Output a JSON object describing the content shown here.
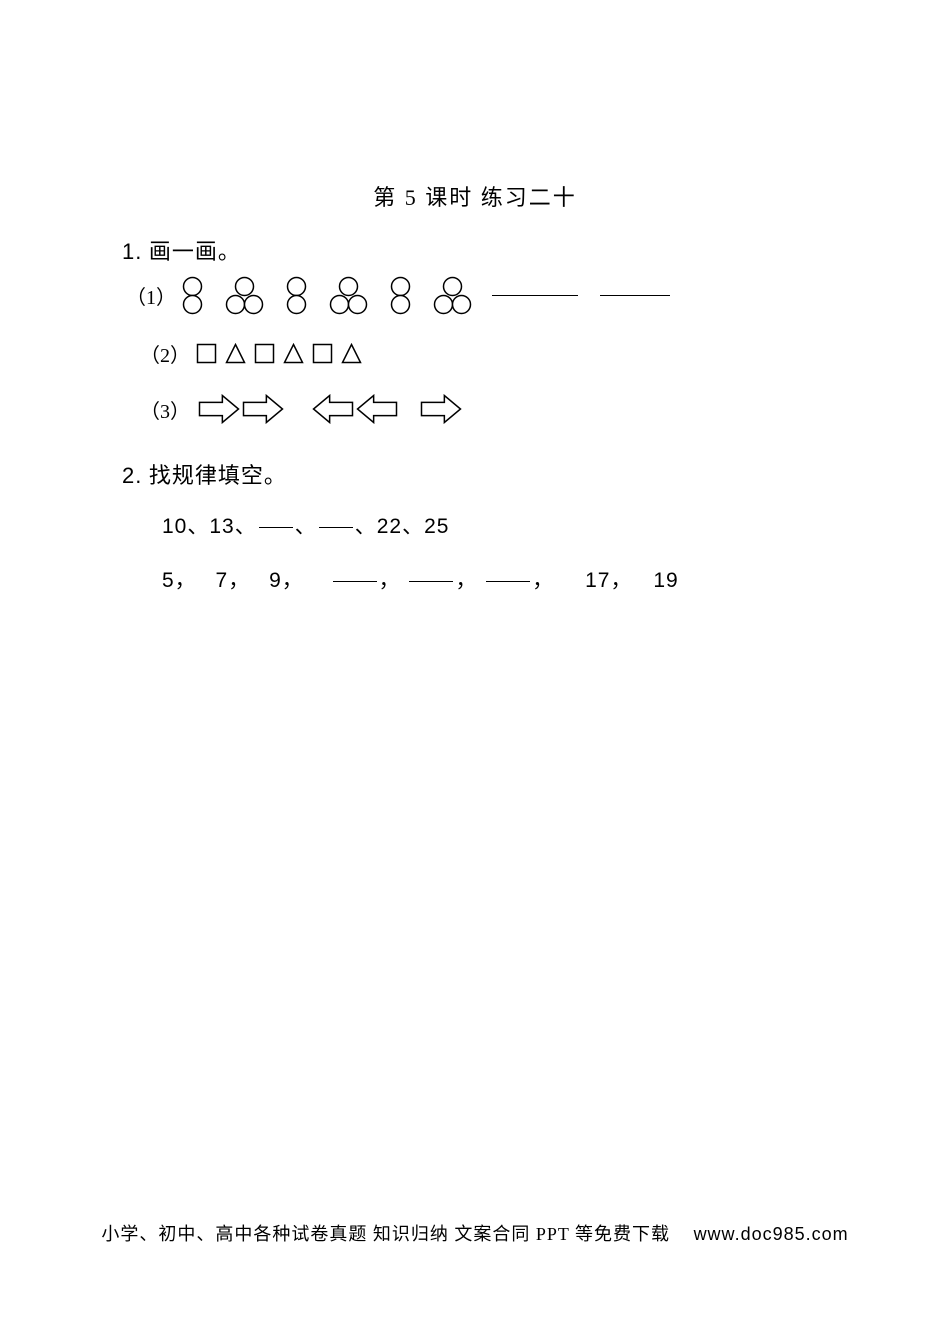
{
  "title": "第 5 课时  练习二十",
  "q1": {
    "heading_num": "1.",
    "heading_text": "画一画。",
    "rows": {
      "r1_label": "（1）",
      "r2_label": "（2）",
      "r3_label": "（3）"
    },
    "shapes": {
      "circle_stroke": "#000000",
      "circle_fill": "#ffffff",
      "square_stroke": "#000000",
      "triangle_stroke": "#000000",
      "arrow_stroke": "#000000",
      "arrow_fill": "#ffffff",
      "stroke_width": 1.5,
      "circle_r": 9,
      "small_square_size": 18,
      "triangle_size": 18,
      "arrow_w": 42,
      "arrow_h": 30
    },
    "pattern1": [
      "two",
      "three",
      "two",
      "three",
      "two",
      "three"
    ],
    "pattern2": [
      "square",
      "triangle",
      "square",
      "triangle",
      "square",
      "triangle"
    ],
    "pattern3": [
      "right",
      "right",
      "left",
      "left",
      "right"
    ]
  },
  "q2": {
    "heading_num": "2.",
    "heading_text": "找规律填空。",
    "seq1": {
      "prefix": "10、13、",
      "mid": "、",
      "suffix": "、22、25"
    },
    "seq2": {
      "a": "5，",
      "b": "7，",
      "c": "9，",
      "comma": "，",
      "d": "17，",
      "e": "19"
    }
  },
  "footer": {
    "text": "小学、初中、高中各种试卷真题 知识归纳 文案合同 PPT 等免费下载",
    "url": "www.doc985.com"
  },
  "colors": {
    "text": "#000000",
    "background": "#ffffff"
  }
}
